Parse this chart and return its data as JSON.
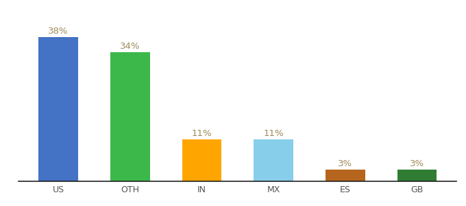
{
  "categories": [
    "US",
    "OTH",
    "IN",
    "MX",
    "ES",
    "GB"
  ],
  "values": [
    38,
    34,
    11,
    11,
    3,
    3
  ],
  "bar_colors": [
    "#4472C4",
    "#3CB84A",
    "#FFA500",
    "#87CEEB",
    "#B5651D",
    "#2E7D32"
  ],
  "labels": [
    "38%",
    "34%",
    "11%",
    "11%",
    "3%",
    "3%"
  ],
  "label_color": "#9E8A5A",
  "ylim": [
    0,
    44
  ],
  "background_color": "#ffffff",
  "label_fontsize": 9.5,
  "tick_fontsize": 9,
  "bar_width": 0.55
}
